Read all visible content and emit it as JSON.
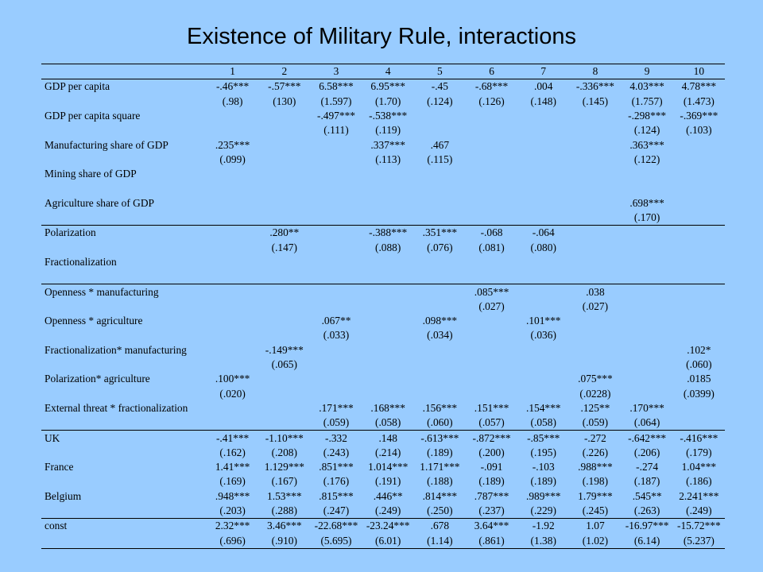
{
  "title": "Existence of Military Rule, interactions",
  "columns": [
    "1",
    "2",
    "3",
    "4",
    "5",
    "6",
    "7",
    "8",
    "9",
    "10"
  ],
  "sections": [
    [
      {
        "label": "GDP per capita",
        "coef": [
          "-.46***",
          "-.57***",
          "6.58***",
          "6.95***",
          "-.45",
          "-.68***",
          ".004",
          "-.336***",
          "4.03***",
          "4.78***"
        ],
        "se": [
          "(.98)",
          "(130)",
          "(1.597)",
          "(1.70)",
          "(.124)",
          "(.126)",
          "(.148)",
          "(.145)",
          "(1.757)",
          "(1.473)"
        ]
      },
      {
        "label": "GDP per capita square",
        "coef": [
          "",
          "",
          "-.497***",
          "-.538***",
          "",
          "",
          "",
          "",
          "-.298***",
          "-.369***"
        ],
        "se": [
          "",
          "",
          "(.111)",
          "(.119)",
          "",
          "",
          "",
          "",
          "(.124)",
          "(.103)"
        ]
      },
      {
        "label": "Manufacturing share of GDP",
        "coef": [
          ".235***",
          "",
          "",
          ".337***",
          ".467",
          "",
          "",
          "",
          ".363***",
          ""
        ],
        "se": [
          "(.099)",
          "",
          "",
          "(.113)",
          "(.115)",
          "",
          "",
          "",
          "(.122)",
          ""
        ]
      },
      {
        "label": "Mining share of GDP",
        "coef": [
          "",
          "",
          "",
          "",
          "",
          "",
          "",
          "",
          "",
          ""
        ],
        "se": [
          "",
          "",
          "",
          "",
          "",
          "",
          "",
          "",
          "",
          ""
        ]
      },
      {
        "label": "Agriculture share of GDP",
        "coef": [
          "",
          "",
          "",
          "",
          "",
          "",
          "",
          "",
          ".698***",
          ""
        ],
        "se": [
          "",
          "",
          "",
          "",
          "",
          "",
          "",
          "",
          "(.170)",
          ""
        ]
      }
    ],
    [
      {
        "label": "Polarization",
        "coef": [
          "",
          ".280**",
          "",
          "-.388***",
          ".351***",
          "-.068",
          "-.064",
          "",
          "",
          ""
        ],
        "se": [
          "",
          "(.147)",
          "",
          "(.088)",
          "(.076)",
          "(.081)",
          "(.080)",
          "",
          "",
          ""
        ]
      },
      {
        "label": "Fractionalization",
        "coef": [
          "",
          "",
          "",
          "",
          "",
          "",
          "",
          "",
          "",
          ""
        ],
        "se": [
          "",
          "",
          "",
          "",
          "",
          "",
          "",
          "",
          "",
          ""
        ]
      }
    ],
    [
      {
        "label": "Openness * manufacturing",
        "coef": [
          "",
          "",
          "",
          "",
          "",
          ".085***",
          "",
          ".038",
          "",
          ""
        ],
        "se": [
          "",
          "",
          "",
          "",
          "",
          "(.027)",
          "",
          "(.027)",
          "",
          ""
        ]
      },
      {
        "label": "Openness * agriculture",
        "coef": [
          "",
          "",
          ".067**",
          "",
          ".098***",
          "",
          ".101***",
          "",
          "",
          ""
        ],
        "se": [
          "",
          "",
          "(.033)",
          "",
          "(.034)",
          "",
          "(.036)",
          "",
          "",
          ""
        ]
      },
      {
        "label": "Fractionalization* manufacturing",
        "coef": [
          "",
          "-.149***",
          "",
          "",
          "",
          "",
          "",
          "",
          "",
          ".102*"
        ],
        "se": [
          "",
          "(.065)",
          "",
          "",
          "",
          "",
          "",
          "",
          "",
          "(.060)"
        ]
      },
      {
        "label": "Polarization* agriculture",
        "coef": [
          ".100***",
          "",
          "",
          "",
          "",
          "",
          "",
          ".075***",
          "",
          ".0185"
        ],
        "se": [
          "(.020)",
          "",
          "",
          "",
          "",
          "",
          "",
          "(.0228)",
          "",
          "(.0399)"
        ]
      },
      {
        "label": "External threat * fractionalization",
        "coef": [
          "",
          "",
          ".171***",
          ".168***",
          ".156***",
          ".151***",
          ".154***",
          ".125**",
          ".170***",
          ""
        ],
        "se": [
          "",
          "",
          "(.059)",
          "(.058)",
          "(.060)",
          "(.057)",
          "(.058)",
          "(.059)",
          "(.064)",
          ""
        ]
      }
    ],
    [
      {
        "label": "UK",
        "coef": [
          "-.41***",
          "-1.10***",
          "-.332",
          ".148",
          "-.613***",
          "-.872***",
          "-.85***",
          "-.272",
          "-.642***",
          "-.416***"
        ],
        "se": [
          "(.162)",
          "(.208)",
          "(.243)",
          "(.214)",
          "(.189)",
          "(.200)",
          "(.195)",
          "(.226)",
          "(.206)",
          "(.179)"
        ]
      },
      {
        "label": "France",
        "coef": [
          "1.41***",
          "1.129***",
          ".851***",
          "1.014***",
          "1.171***",
          "-.091",
          "-.103",
          ".988***",
          "-.274",
          "1.04***"
        ],
        "se": [
          "(.169)",
          "(.167)",
          "(.176)",
          "(.191)",
          "(.188)",
          "(.189)",
          "(.189)",
          "(.198)",
          "(.187)",
          "(.186)"
        ]
      },
      {
        "label": "Belgium",
        "coef": [
          ".948***",
          "1.53***",
          ".815***",
          ".446**",
          ".814***",
          ".787***",
          ".989***",
          "1.79***",
          ".545**",
          "2.241***"
        ],
        "se": [
          "(.203)",
          "(.288)",
          "(.247)",
          "(.249)",
          "(.250)",
          "(.237)",
          "(.229)",
          "(.245)",
          "(.263)",
          "(.249)"
        ]
      }
    ],
    [
      {
        "label": "const",
        "coef": [
          "2.32***",
          "3.46***",
          "-22.68***",
          "-23.24***",
          ".678",
          "3.64***",
          "-1.92",
          "1.07",
          "-16.97***",
          "-15.72***"
        ],
        "se": [
          "(.696)",
          "(.910)",
          "(5.695)",
          "(6.01)",
          "(1.14)",
          "(.861)",
          "(1.38)",
          "(1.02)",
          "(6.14)",
          "(5.237)"
        ]
      }
    ]
  ]
}
